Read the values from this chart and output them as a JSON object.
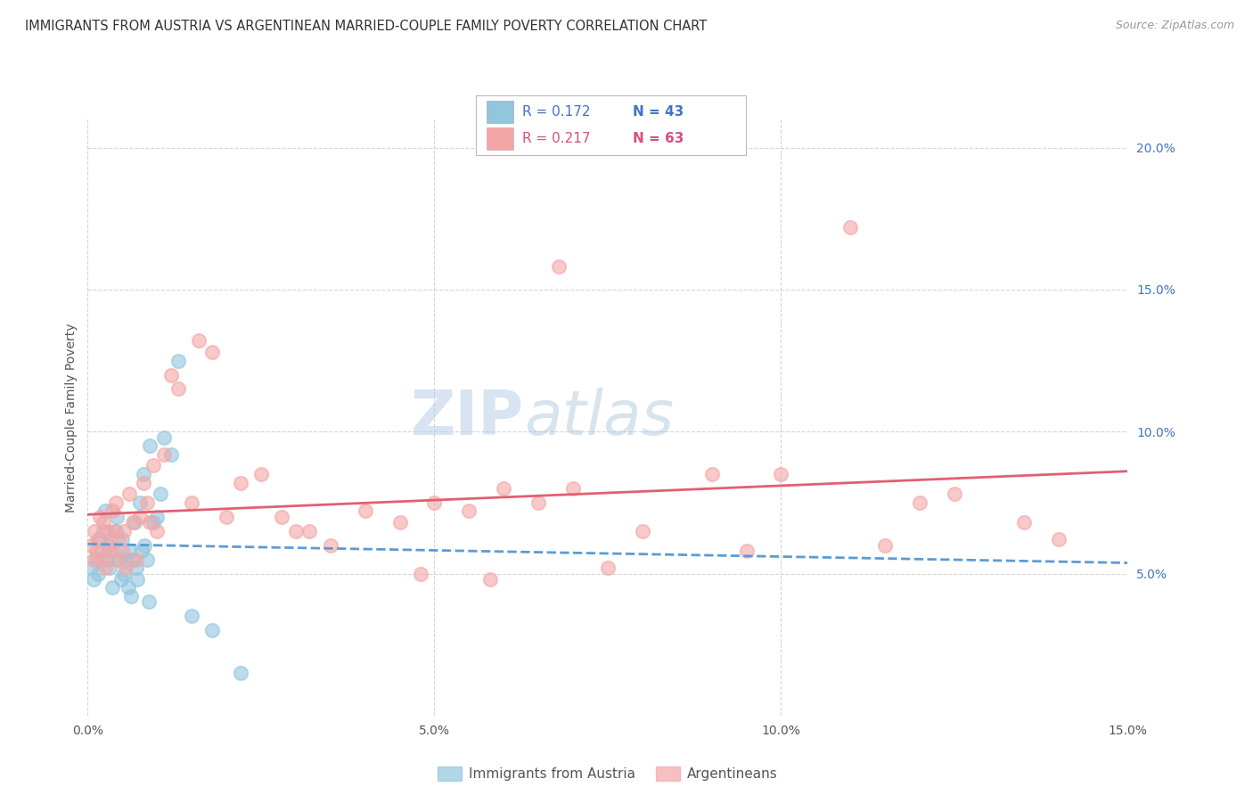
{
  "title": "IMMIGRANTS FROM AUSTRIA VS ARGENTINEAN MARRIED-COUPLE FAMILY POVERTY CORRELATION CHART",
  "source": "Source: ZipAtlas.com",
  "ylabel": "Married-Couple Family Poverty",
  "xmin": 0.0,
  "xmax": 15.0,
  "ymin": 0.0,
  "ymax": 21.0,
  "legend_r1": "R = 0.172",
  "legend_n1": "N = 43",
  "legend_r2": "R = 0.217",
  "legend_n2": "N = 63",
  "color_austria": "#92c5de",
  "color_argentina": "#f4a6a6",
  "color_austria_line": "#5b9bd5",
  "color_argentina_line": "#e06070",
  "watermark_zip": "ZIP",
  "watermark_atlas": "atlas",
  "austria_x": [
    0.05,
    0.08,
    0.12,
    0.15,
    0.18,
    0.2,
    0.22,
    0.25,
    0.28,
    0.3,
    0.32,
    0.35,
    0.38,
    0.4,
    0.42,
    0.45,
    0.48,
    0.5,
    0.52,
    0.55,
    0.58,
    0.6,
    0.62,
    0.65,
    0.68,
    0.7,
    0.72,
    0.75,
    0.78,
    0.8,
    0.82,
    0.85,
    0.88,
    0.9,
    0.95,
    1.0,
    1.05,
    1.1,
    1.2,
    1.3,
    1.5,
    1.8,
    2.2
  ],
  "austria_y": [
    5.2,
    4.8,
    5.5,
    5.0,
    6.2,
    5.8,
    6.5,
    7.2,
    5.5,
    6.0,
    5.2,
    4.5,
    5.8,
    6.5,
    7.0,
    5.5,
    4.8,
    6.2,
    5.0,
    5.5,
    4.5,
    5.8,
    4.2,
    5.5,
    6.8,
    5.2,
    4.8,
    7.5,
    5.8,
    8.5,
    6.0,
    5.5,
    4.0,
    9.5,
    6.8,
    7.0,
    7.8,
    9.8,
    9.2,
    12.5,
    3.5,
    3.0,
    1.5
  ],
  "argentina_x": [
    0.05,
    0.08,
    0.1,
    0.12,
    0.15,
    0.18,
    0.2,
    0.22,
    0.25,
    0.28,
    0.3,
    0.32,
    0.35,
    0.38,
    0.4,
    0.42,
    0.45,
    0.5,
    0.52,
    0.55,
    0.6,
    0.65,
    0.7,
    0.75,
    0.8,
    0.85,
    0.9,
    0.95,
    1.0,
    1.1,
    1.2,
    1.3,
    1.5,
    1.6,
    1.8,
    2.0,
    2.2,
    2.5,
    2.8,
    3.0,
    3.5,
    4.0,
    4.5,
    5.0,
    5.5,
    6.0,
    6.5,
    7.0,
    8.0,
    9.0,
    10.0,
    11.0,
    12.0,
    12.5,
    13.5,
    14.0,
    3.2,
    4.8,
    5.8,
    6.8,
    7.5,
    9.5,
    11.5
  ],
  "argentina_y": [
    6.0,
    5.5,
    6.5,
    5.8,
    6.2,
    7.0,
    5.5,
    6.8,
    5.2,
    6.5,
    6.0,
    5.8,
    7.2,
    6.5,
    7.5,
    5.5,
    6.2,
    5.8,
    6.5,
    5.2,
    7.8,
    6.8,
    5.5,
    7.0,
    8.2,
    7.5,
    6.8,
    8.8,
    6.5,
    9.2,
    12.0,
    11.5,
    7.5,
    13.2,
    12.8,
    7.0,
    8.2,
    8.5,
    7.0,
    6.5,
    6.0,
    7.2,
    6.8,
    7.5,
    7.2,
    8.0,
    7.5,
    8.0,
    6.5,
    8.5,
    8.5,
    17.2,
    7.5,
    7.8,
    6.8,
    6.2,
    6.5,
    5.0,
    4.8,
    15.8,
    5.2,
    5.8,
    6.0
  ]
}
